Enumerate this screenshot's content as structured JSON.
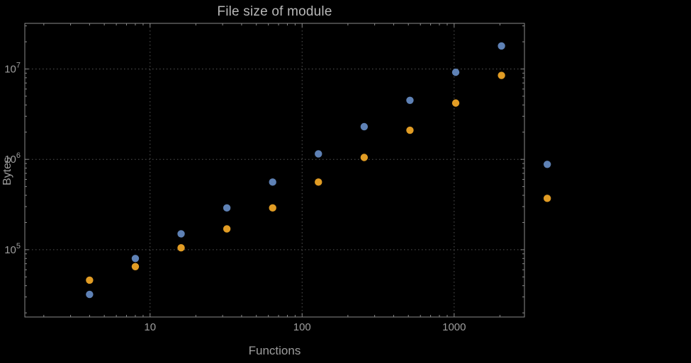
{
  "colors": {
    "background": "#000000",
    "frame": "#8a8a8a",
    "grid": "#565656",
    "tick": "#8a8a8a",
    "text": "#9d9d9d",
    "title_text": "#b8b8b8",
    "series1": "#5e81b5",
    "series2": "#e19c24"
  },
  "chart_data": {
    "type": "scatter",
    "title": "File size of module",
    "xlabel": "Functions",
    "ylabel": "Bytes",
    "xscale": "log",
    "yscale": "log",
    "grid": true,
    "legend": "none",
    "xlim": [
      1.5,
      2900
    ],
    "ylim": [
      18000,
      32000000
    ],
    "x_ticks": [
      10,
      100,
      1000
    ],
    "x_tick_labels": [
      "10",
      "100",
      "1000"
    ],
    "y_ticks": [
      100000,
      1000000,
      10000000
    ],
    "y_tick_exponents": [
      5,
      6,
      7
    ],
    "series": [
      {
        "name": "series-1-blue",
        "color": "#5e81b5",
        "points": [
          [
            4,
            32000
          ],
          [
            8,
            80000
          ],
          [
            16,
            150000
          ],
          [
            32,
            290000
          ],
          [
            64,
            560000
          ],
          [
            128,
            1150000
          ],
          [
            256,
            2300000
          ],
          [
            512,
            4500000
          ],
          [
            1024,
            9200000
          ],
          [
            2048,
            18000000
          ],
          [
            4096,
            880000
          ]
        ]
      },
      {
        "name": "series-2-orange",
        "color": "#e19c24",
        "points": [
          [
            4,
            46000
          ],
          [
            8,
            65000
          ],
          [
            16,
            105000
          ],
          [
            32,
            170000
          ],
          [
            64,
            290000
          ],
          [
            128,
            560000
          ],
          [
            256,
            1050000
          ],
          [
            512,
            2100000
          ],
          [
            1024,
            4200000
          ],
          [
            2048,
            8500000
          ],
          [
            4096,
            370000
          ]
        ]
      }
    ]
  }
}
